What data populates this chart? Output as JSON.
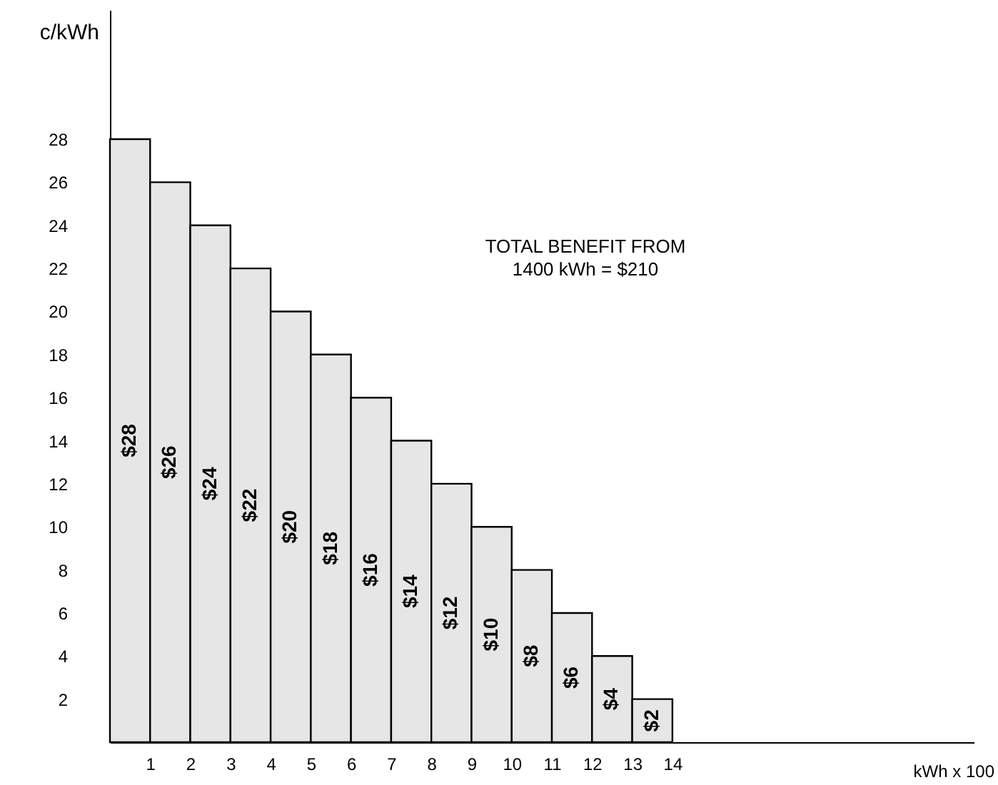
{
  "chart_data": {
    "type": "histogram",
    "xlabel": "kWh x 100",
    "ylabel": "c/kWh",
    "bins": [
      0,
      1,
      2,
      3,
      4,
      5,
      6,
      7,
      8,
      9,
      10,
      11,
      12,
      13,
      14
    ],
    "values": [
      28,
      26,
      24,
      22,
      20,
      18,
      16,
      14,
      12,
      10,
      8,
      6,
      4,
      2
    ],
    "value_labels": [
      "$28",
      "$26",
      "$24",
      "$22",
      "$20",
      "$18",
      "$16",
      "$14",
      "$12",
      "$10",
      "$8",
      "$6",
      "$4",
      "$2"
    ],
    "color": "#e6e6e6",
    "xlim": [
      0,
      21.5
    ],
    "ylim": [
      0,
      34
    ],
    "xticks": [
      1,
      2,
      3,
      4,
      5,
      6,
      7,
      8,
      9,
      10,
      11,
      12,
      13,
      14
    ],
    "yticks": [
      2,
      4,
      6,
      8,
      10,
      12,
      14,
      16,
      18,
      20,
      22,
      24,
      26,
      28
    ],
    "grid": false,
    "annotations": [
      "TOTAL BENEFIT FROM\n1400 kWh = $210"
    ]
  }
}
